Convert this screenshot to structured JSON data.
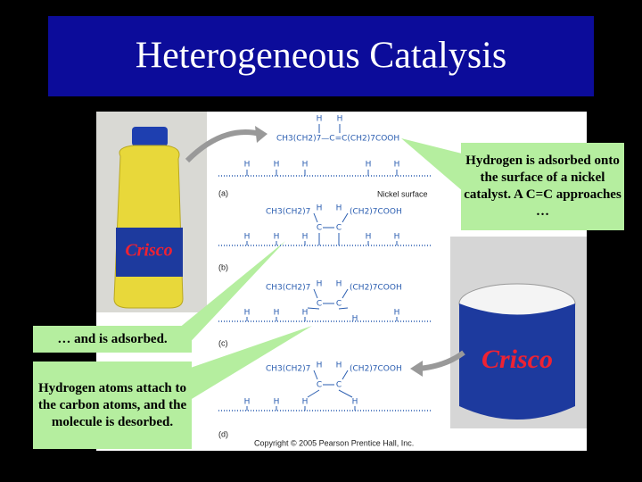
{
  "header": {
    "title": "Heterogeneous Catalysis"
  },
  "callouts": [
    "Hydrogen is adsorbed onto the surface of a nickel catalyst. A C=C approaches …",
    "… and is adsorbed.",
    "Hydrogen atoms attach to the carbon atoms, and the molecule is desorbed."
  ],
  "diagram": {
    "hydrogen": "H",
    "carbon": "C",
    "surface_label": "Nickel surface",
    "panels": [
      {
        "label": "(a)",
        "molecule": "CH3(CH2)7—C=C(CH2)7COOH"
      },
      {
        "label": "(b)",
        "molecule_left": "CH3(CH2)7",
        "molecule_right": "(CH2)7COOH"
      },
      {
        "label": "(c)",
        "molecule_left": "CH3(CH2)7",
        "molecule_right": "(CH2)7COOH"
      },
      {
        "label": "(d)",
        "molecule_left": "CH3(CH2)7",
        "molecule_right": "(CH2)7COOH"
      }
    ],
    "copyright": "Copyright © 2005 Pearson Prentice Hall, Inc."
  },
  "products": {
    "brand": "Crisco"
  }
}
